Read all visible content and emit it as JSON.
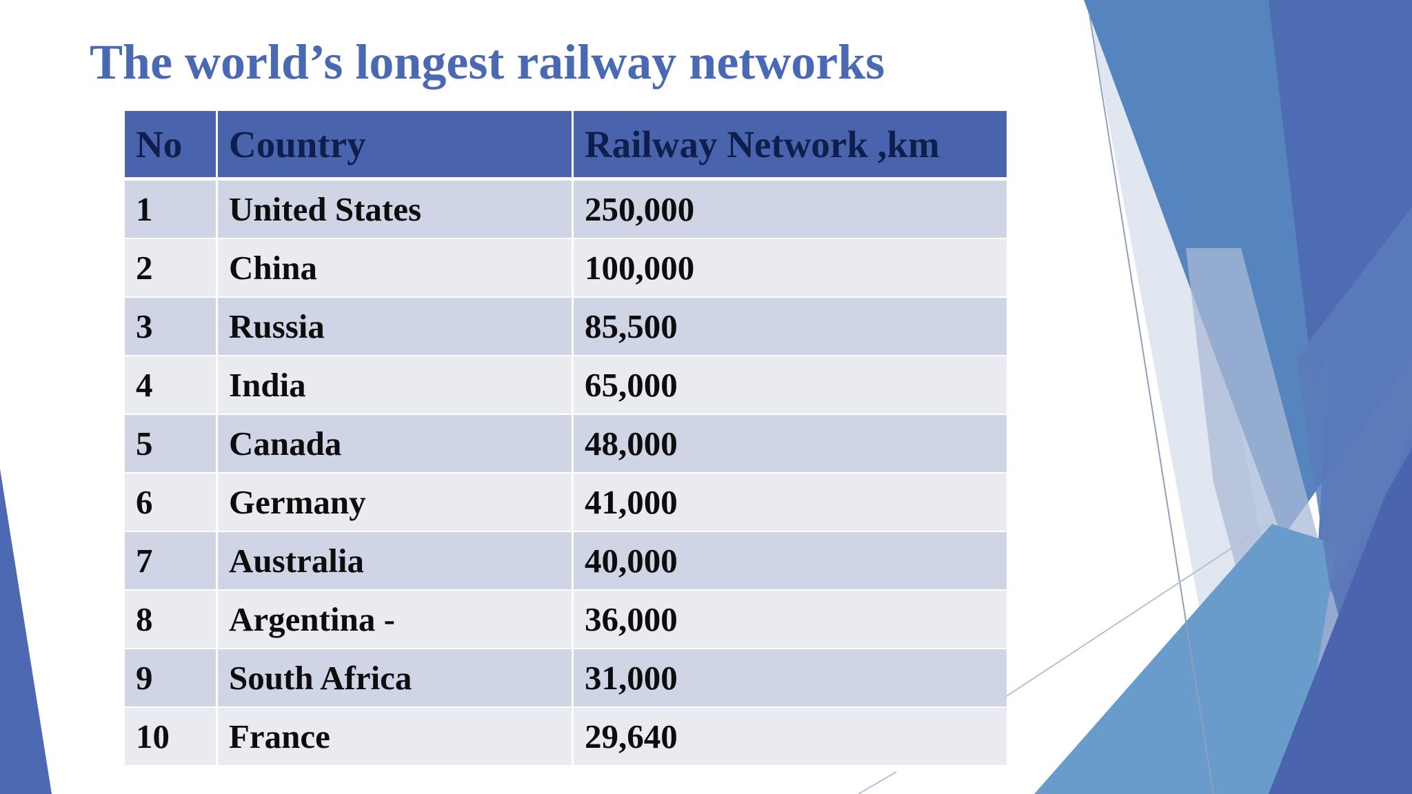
{
  "slide": {
    "title": "The world’s longest railway networks"
  },
  "table": {
    "headers": [
      "No",
      "Country",
      "Railway Network ,km"
    ],
    "rows": [
      [
        "1",
        "United States",
        "250,000"
      ],
      [
        "2",
        "China",
        "100,000"
      ],
      [
        "3",
        "Russia",
        "85,500"
      ],
      [
        "4",
        "India",
        "65,000"
      ],
      [
        "5",
        "Canada",
        "48,000"
      ],
      [
        "6",
        "Germany",
        "41,000"
      ],
      [
        "7",
        "Australia",
        "40,000"
      ],
      [
        "8",
        "Argentina -",
        "36,000"
      ],
      [
        "9",
        "South Africa",
        "31,000"
      ],
      [
        "10",
        "France",
        "29,640"
      ]
    ]
  },
  "colors": {
    "title": "#4a69b4",
    "header_fill": "#4964ad",
    "header_text": "#0e1e4d",
    "row_band_dark": "#cfd5e4",
    "row_band_light": "#e9ebf1",
    "accent_blue": "#4a6fb5"
  },
  "decorations": [
    "blue-facet-shapes-right",
    "blue-triangle-left"
  ]
}
